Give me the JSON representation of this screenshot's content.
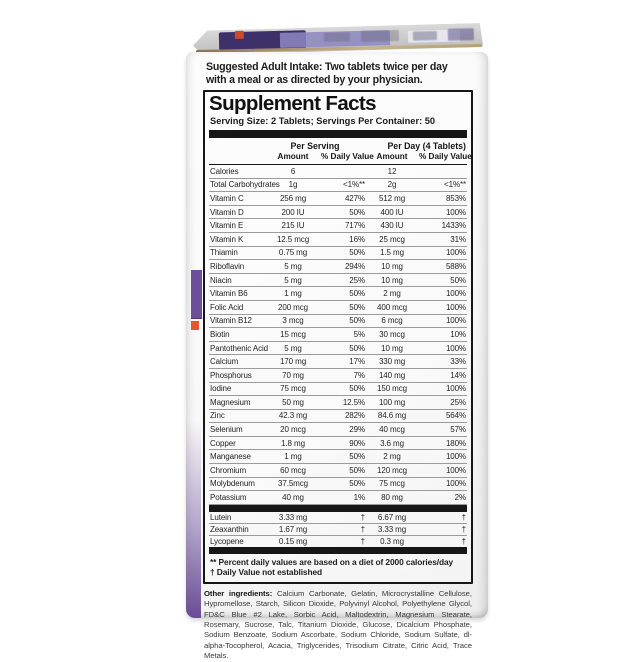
{
  "box": {
    "suggested_intake_line1": "Suggested Adult Intake: Two tablets twice per day",
    "suggested_intake_line2": "with a meal or as directed by your physician."
  },
  "supplement_facts": {
    "title": "Supplement Facts",
    "serving_info": "Serving Size: 2 Tablets; Servings Per Container: 50",
    "col_group_per_serving": "Per Serving",
    "col_group_per_day": "Per Day (4 Tablets)",
    "col_amount_1": "Amount",
    "col_daily_value_1": "% Daily Value",
    "col_amount_2": "Amount",
    "col_daily_value_2": "% Daily Value",
    "rows": [
      {
        "name": "Calories",
        "ps_amt": "6",
        "ps_dv": "",
        "pd_amt": "12",
        "pd_dv": ""
      },
      {
        "name": "Total Carbohydrates",
        "ps_amt": "1g",
        "ps_dv": "<1%**",
        "pd_amt": "2g",
        "pd_dv": "<1%**"
      },
      {
        "name": "Vitamin C",
        "ps_amt": "256 mg",
        "ps_dv": "427%",
        "pd_amt": "512 mg",
        "pd_dv": "853%"
      },
      {
        "name": "Vitamin D",
        "ps_amt": "200 IU",
        "ps_dv": "50%",
        "pd_amt": "400 IU",
        "pd_dv": "100%"
      },
      {
        "name": "Vitamin E",
        "ps_amt": "215 IU",
        "ps_dv": "717%",
        "pd_amt": "430 IU",
        "pd_dv": "1433%"
      },
      {
        "name": "Vitamin K",
        "ps_amt": "12.5 mcg",
        "ps_dv": "16%",
        "pd_amt": "25 mcg",
        "pd_dv": "31%"
      },
      {
        "name": "Thiamin",
        "ps_amt": "0.75 mg",
        "ps_dv": "50%",
        "pd_amt": "1.5 mg",
        "pd_dv": "100%"
      },
      {
        "name": "Riboflavin",
        "ps_amt": "5 mg",
        "ps_dv": "294%",
        "pd_amt": "10 mg",
        "pd_dv": "588%"
      },
      {
        "name": "Niacin",
        "ps_amt": "5 mg",
        "ps_dv": "25%",
        "pd_amt": "10 mg",
        "pd_dv": "50%"
      },
      {
        "name": "Vitamin B6",
        "ps_amt": "1 mg",
        "ps_dv": "50%",
        "pd_amt": "2 mg",
        "pd_dv": "100%"
      },
      {
        "name": "Folic Acid",
        "ps_amt": "200 mcg",
        "ps_dv": "50%",
        "pd_amt": "400 mcg",
        "pd_dv": "100%"
      },
      {
        "name": "Vitamin B12",
        "ps_amt": "3 mcg",
        "ps_dv": "50%",
        "pd_amt": "6 mcg",
        "pd_dv": "100%"
      },
      {
        "name": "Biotin",
        "ps_amt": "15 mcg",
        "ps_dv": "5%",
        "pd_amt": "30 mcg",
        "pd_dv": "10%"
      },
      {
        "name": "Pantothenic Acid",
        "ps_amt": "5 mg",
        "ps_dv": "50%",
        "pd_amt": "10 mg",
        "pd_dv": "100%"
      },
      {
        "name": "Calcium",
        "ps_amt": "170 mg",
        "ps_dv": "17%",
        "pd_amt": "330 mg",
        "pd_dv": "33%"
      },
      {
        "name": "Phosphorus",
        "ps_amt": "70 mg",
        "ps_dv": "7%",
        "pd_amt": "140 mg",
        "pd_dv": "14%"
      },
      {
        "name": "Iodine",
        "ps_amt": "75 mcg",
        "ps_dv": "50%",
        "pd_amt": "150 mcg",
        "pd_dv": "100%"
      },
      {
        "name": "Magnesium",
        "ps_amt": "50 mg",
        "ps_dv": "12.5%",
        "pd_amt": "100 mg",
        "pd_dv": "25%"
      },
      {
        "name": "Zinc",
        "ps_amt": "42.3 mg",
        "ps_dv": "282%",
        "pd_amt": "84.6 mg",
        "pd_dv": "564%"
      },
      {
        "name": "Selenium",
        "ps_amt": "20 mcg",
        "ps_dv": "29%",
        "pd_amt": "40 mcg",
        "pd_dv": "57%"
      },
      {
        "name": "Copper",
        "ps_amt": "1.8 mg",
        "ps_dv": "90%",
        "pd_amt": "3.6 mg",
        "pd_dv": "180%"
      },
      {
        "name": "Manganese",
        "ps_amt": "1 mg",
        "ps_dv": "50%",
        "pd_amt": "2 mg",
        "pd_dv": "100%"
      },
      {
        "name": "Chromium",
        "ps_amt": "60 mcg",
        "ps_dv": "50%",
        "pd_amt": "120 mcg",
        "pd_dv": "100%"
      },
      {
        "name": "Molybdenum",
        "ps_amt": "37.5mcg",
        "ps_dv": "50%",
        "pd_amt": "75 mcg",
        "pd_dv": "100%"
      },
      {
        "name": "Potassium",
        "ps_amt": "40 mg",
        "ps_dv": "1%",
        "pd_amt": "80 mg",
        "pd_dv": "2%"
      }
    ],
    "special_rows": [
      {
        "name": "Lutein",
        "ps_amt": "3.33 mg",
        "ps_dv": "†",
        "pd_amt": "6.67 mg",
        "pd_dv": "†"
      },
      {
        "name": "Zeaxanthin",
        "ps_amt": "1.67 mg",
        "ps_dv": "†",
        "pd_amt": "3.33 mg",
        "pd_dv": "†"
      },
      {
        "name": "Lycopene",
        "ps_amt": "0.15 mg",
        "ps_dv": "†",
        "pd_amt": "0.3 mg",
        "pd_dv": "†"
      }
    ],
    "footnote_percent": "** Percent daily values are based on a diet of 2000 calories/day",
    "footnote_dagger": "† Daily Value not established"
  },
  "other_ingredients": {
    "label": "Other ingredients:",
    "text": " Calcium Carbonate, Gelatin, Microcrystalline Cellulose, Hypromellose, Starch, Silicon Dioxide, Polyvinyl Alcohol, Polyethylene Glycol, FD&C Blue #2 Lake, Sorbic Acid, Maltodextrin, Magnesium Stearate, Rosemary, Sucrose, Talc, Titanium Dioxide, Glucose, Dicalcium Phosphate, Sodium Benzoate, Sodium Ascorbate, Sodium Chloride, Sodium Sulfate, dl-alpha-Tocopherol, Acacia, Triglycerides, Trisodium Citrate, Citric Acid, Trace Metals."
  },
  "colors": {
    "accent_purple": "#6b4f9a",
    "accent_red": "#e8542f",
    "flap_purple": "#3e3169"
  }
}
